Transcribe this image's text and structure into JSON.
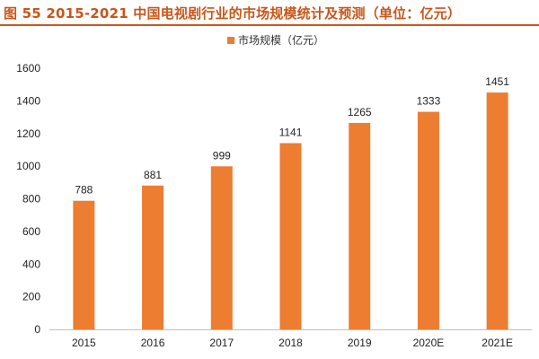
{
  "title": "图 55 2015-2021 中国电视剧行业的市场规模统计及预测（单位：亿元）",
  "chart_data": {
    "type": "bar",
    "categories": [
      "2015",
      "2016",
      "2017",
      "2018",
      "2019",
      "2020E",
      "2021E"
    ],
    "series": [
      {
        "name": "市场规模（亿元）",
        "values": [
          788,
          881,
          999,
          1141,
          1265,
          1333,
          1451
        ]
      }
    ],
    "ylim": [
      0,
      1600
    ],
    "yticks": [
      0,
      200,
      400,
      600,
      800,
      1000,
      1200,
      1400,
      1600
    ],
    "grid": false,
    "legend": "top-center",
    "colors": {
      "bar": "#ED7D31",
      "title": "#C8561A"
    }
  }
}
